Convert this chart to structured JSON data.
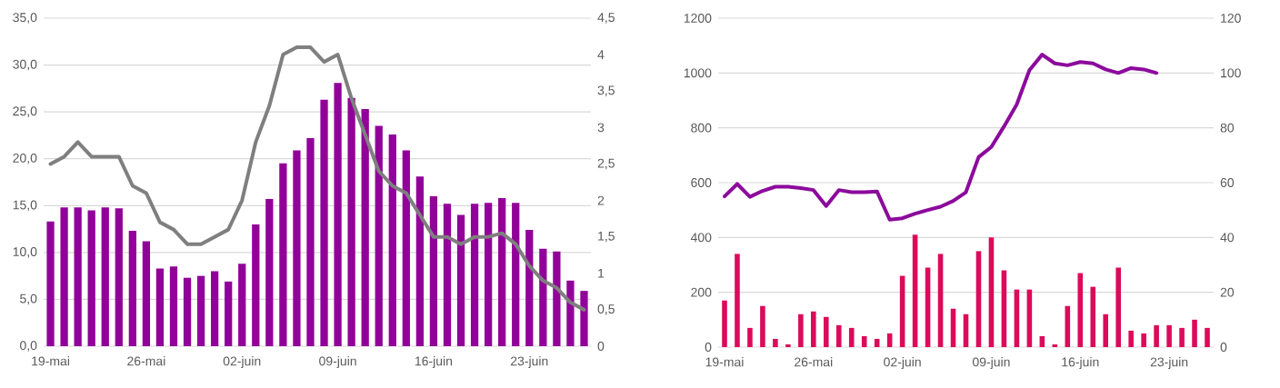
{
  "chart_data": [
    {
      "type": "bar",
      "categories": [
        "19-mai",
        null,
        null,
        null,
        null,
        null,
        null,
        "26-mai",
        null,
        null,
        null,
        null,
        null,
        null,
        "02-juin",
        null,
        null,
        null,
        null,
        null,
        null,
        "09-juin",
        null,
        null,
        null,
        null,
        null,
        null,
        "16-juin",
        null,
        null,
        null,
        null,
        null,
        null,
        "23-juin",
        null,
        null,
        null,
        null
      ],
      "series": [
        {
          "color": "#92009a",
          "values": [
            13.3,
            14.8,
            14.8,
            14.5,
            14.8,
            14.7,
            12.3,
            11.2,
            8.3,
            8.5,
            7.3,
            7.5,
            8.0,
            6.9,
            8.8,
            13.0,
            15.7,
            19.5,
            20.9,
            22.2,
            26.3,
            28.1,
            26.5,
            25.3,
            23.5,
            22.6,
            20.9,
            18.1,
            16.0,
            15.2,
            14.0,
            15.2,
            15.3,
            15.8,
            15.3,
            12.4,
            10.4,
            10.1,
            7.0,
            5.9
          ]
        },
        {
          "type": "line",
          "axis": "y2",
          "color": "#7f7f7f",
          "values": [
            2.5,
            2.6,
            2.8,
            2.6,
            2.6,
            2.6,
            2.2,
            2.1,
            1.7,
            1.6,
            1.4,
            1.4,
            1.5,
            1.6,
            2.0,
            2.8,
            3.3,
            4.0,
            4.1,
            4.1,
            3.9,
            4.0,
            3.4,
            2.9,
            2.4,
            2.2,
            2.1,
            1.8,
            1.5,
            1.5,
            1.4,
            1.5,
            1.5,
            1.55,
            1.4,
            1.1,
            0.9,
            0.8,
            0.6,
            0.5
          ]
        }
      ],
      "ylim": [
        0,
        35
      ],
      "yticks": [
        {
          "value": 0,
          "label": "0,0"
        },
        {
          "value": 5,
          "label": "5,0"
        },
        {
          "value": 10,
          "label": "10,0"
        },
        {
          "value": 15,
          "label": "15,0"
        },
        {
          "value": 20,
          "label": "20,0"
        },
        {
          "value": 25,
          "label": "25,0"
        },
        {
          "value": 30,
          "label": "30,0"
        },
        {
          "value": 35,
          "label": "35,0"
        }
      ],
      "y2lim": [
        0,
        4.5
      ],
      "y2ticks": [
        0,
        {
          "value": 0.5,
          "label": "0,5"
        },
        1,
        {
          "value": 1.5,
          "label": "1,5"
        },
        2,
        {
          "value": 2.5,
          "label": "2,5"
        },
        3,
        {
          "value": 3.5,
          "label": "3,5"
        },
        4,
        {
          "value": 4.5,
          "label": "4,5"
        }
      ],
      "grid": "y"
    },
    {
      "type": "bar",
      "categories": [
        "19-mai",
        null,
        null,
        null,
        null,
        null,
        null,
        "26-mai",
        null,
        null,
        null,
        null,
        null,
        null,
        "02-juin",
        null,
        null,
        null,
        null,
        null,
        null,
        "09-juin",
        null,
        null,
        null,
        null,
        null,
        null,
        "16-juin",
        null,
        null,
        null,
        null,
        null,
        null,
        "23-juin",
        null,
        null,
        null
      ],
      "series": [
        {
          "axis": "y2",
          "color": "#dc0a5a",
          "values": [
            17,
            34,
            7,
            15,
            3,
            1,
            12,
            13,
            11,
            8,
            7,
            4,
            3,
            5,
            26,
            41,
            29,
            34,
            14,
            12,
            35,
            40,
            28,
            21,
            21,
            4,
            1,
            15,
            27,
            22,
            12,
            29,
            6,
            5,
            8,
            8,
            7,
            10,
            7
          ]
        },
        {
          "type": "line",
          "color": "#8c0a9c",
          "values": [
            550,
            595,
            548,
            570,
            585,
            585,
            580,
            573,
            515,
            573,
            565,
            565,
            568,
            465,
            470,
            487,
            500,
            512,
            533,
            565,
            693,
            730,
            805,
            885,
            1010,
            1067,
            1035,
            1028,
            1040,
            1035,
            1013,
            1000,
            1018,
            1013,
            1000,
            null,
            null,
            null,
            null
          ]
        }
      ],
      "ylim": [
        0,
        1200
      ],
      "yticks": [
        0,
        200,
        400,
        600,
        800,
        1000,
        1200
      ],
      "y2lim": [
        0,
        120
      ],
      "y2ticks": [
        0,
        20,
        40,
        60,
        80,
        100,
        120
      ],
      "grid": "y"
    }
  ]
}
